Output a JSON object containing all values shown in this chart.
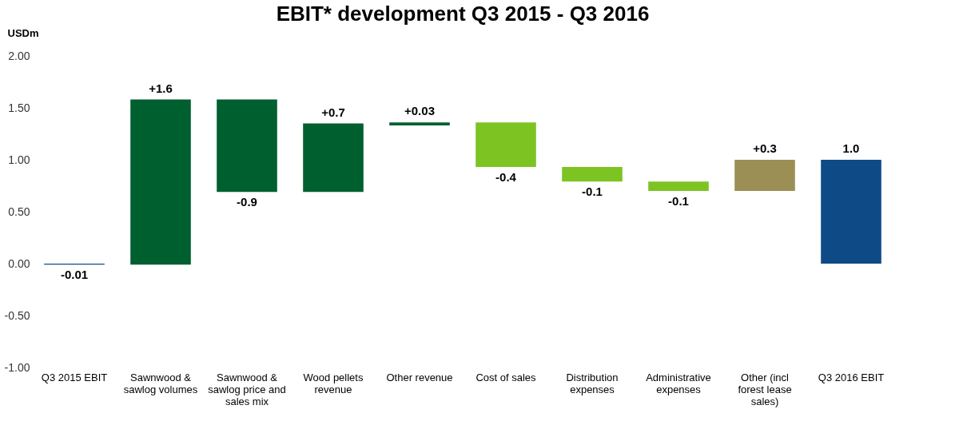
{
  "chart_data": {
    "type": "bar",
    "title": "EBIT* development Q3 2015 - Q3 2016",
    "ylabel": "USDm",
    "categories": [
      "Q3 2015 EBIT",
      "Sawnwood & sawlog volumes",
      "Sawnwood & sawlog price and sales mix",
      "Wood pellets revenue",
      "Other revenue",
      "Cost of sales",
      "Distribution expenses",
      "Administrative expenses",
      "Other (incl forest lease sales)",
      "Q3 2016 EBIT"
    ],
    "base": [
      0,
      -0.01,
      1.58,
      0.69,
      1.33,
      1.36,
      0.93,
      0.79,
      0.7,
      0
    ],
    "values": [
      -0.01,
      1.59,
      -0.89,
      0.66,
      0.03,
      -0.43,
      -0.14,
      -0.09,
      0.3,
      1.0
    ],
    "colors": [
      "#0e4a86",
      "#005f2f",
      "#005f2f",
      "#005f2f",
      "#005f2f",
      "#7dc423",
      "#7dc423",
      "#7dc423",
      "#9b8f55",
      "#0e4a86"
    ],
    "value_labels": [
      "-0.01",
      "+1.6",
      "-0.9",
      "+0.7",
      "+0.03",
      "-0.4",
      "-0.1",
      "-0.1",
      "+0.3",
      "1.0"
    ],
    "ylim": [
      -1,
      2
    ],
    "yticks": [
      {
        "value": -1,
        "label": "-1.00"
      },
      {
        "value": -0.5,
        "label": "-0.50"
      },
      {
        "value": 0,
        "label": "0.00"
      },
      {
        "value": 0.5,
        "label": "0.50"
      },
      {
        "value": 1,
        "label": "1.00"
      },
      {
        "value": 1.5,
        "label": "1.50"
      },
      {
        "value": 2,
        "label": "2.00"
      }
    ],
    "grid": false
  }
}
